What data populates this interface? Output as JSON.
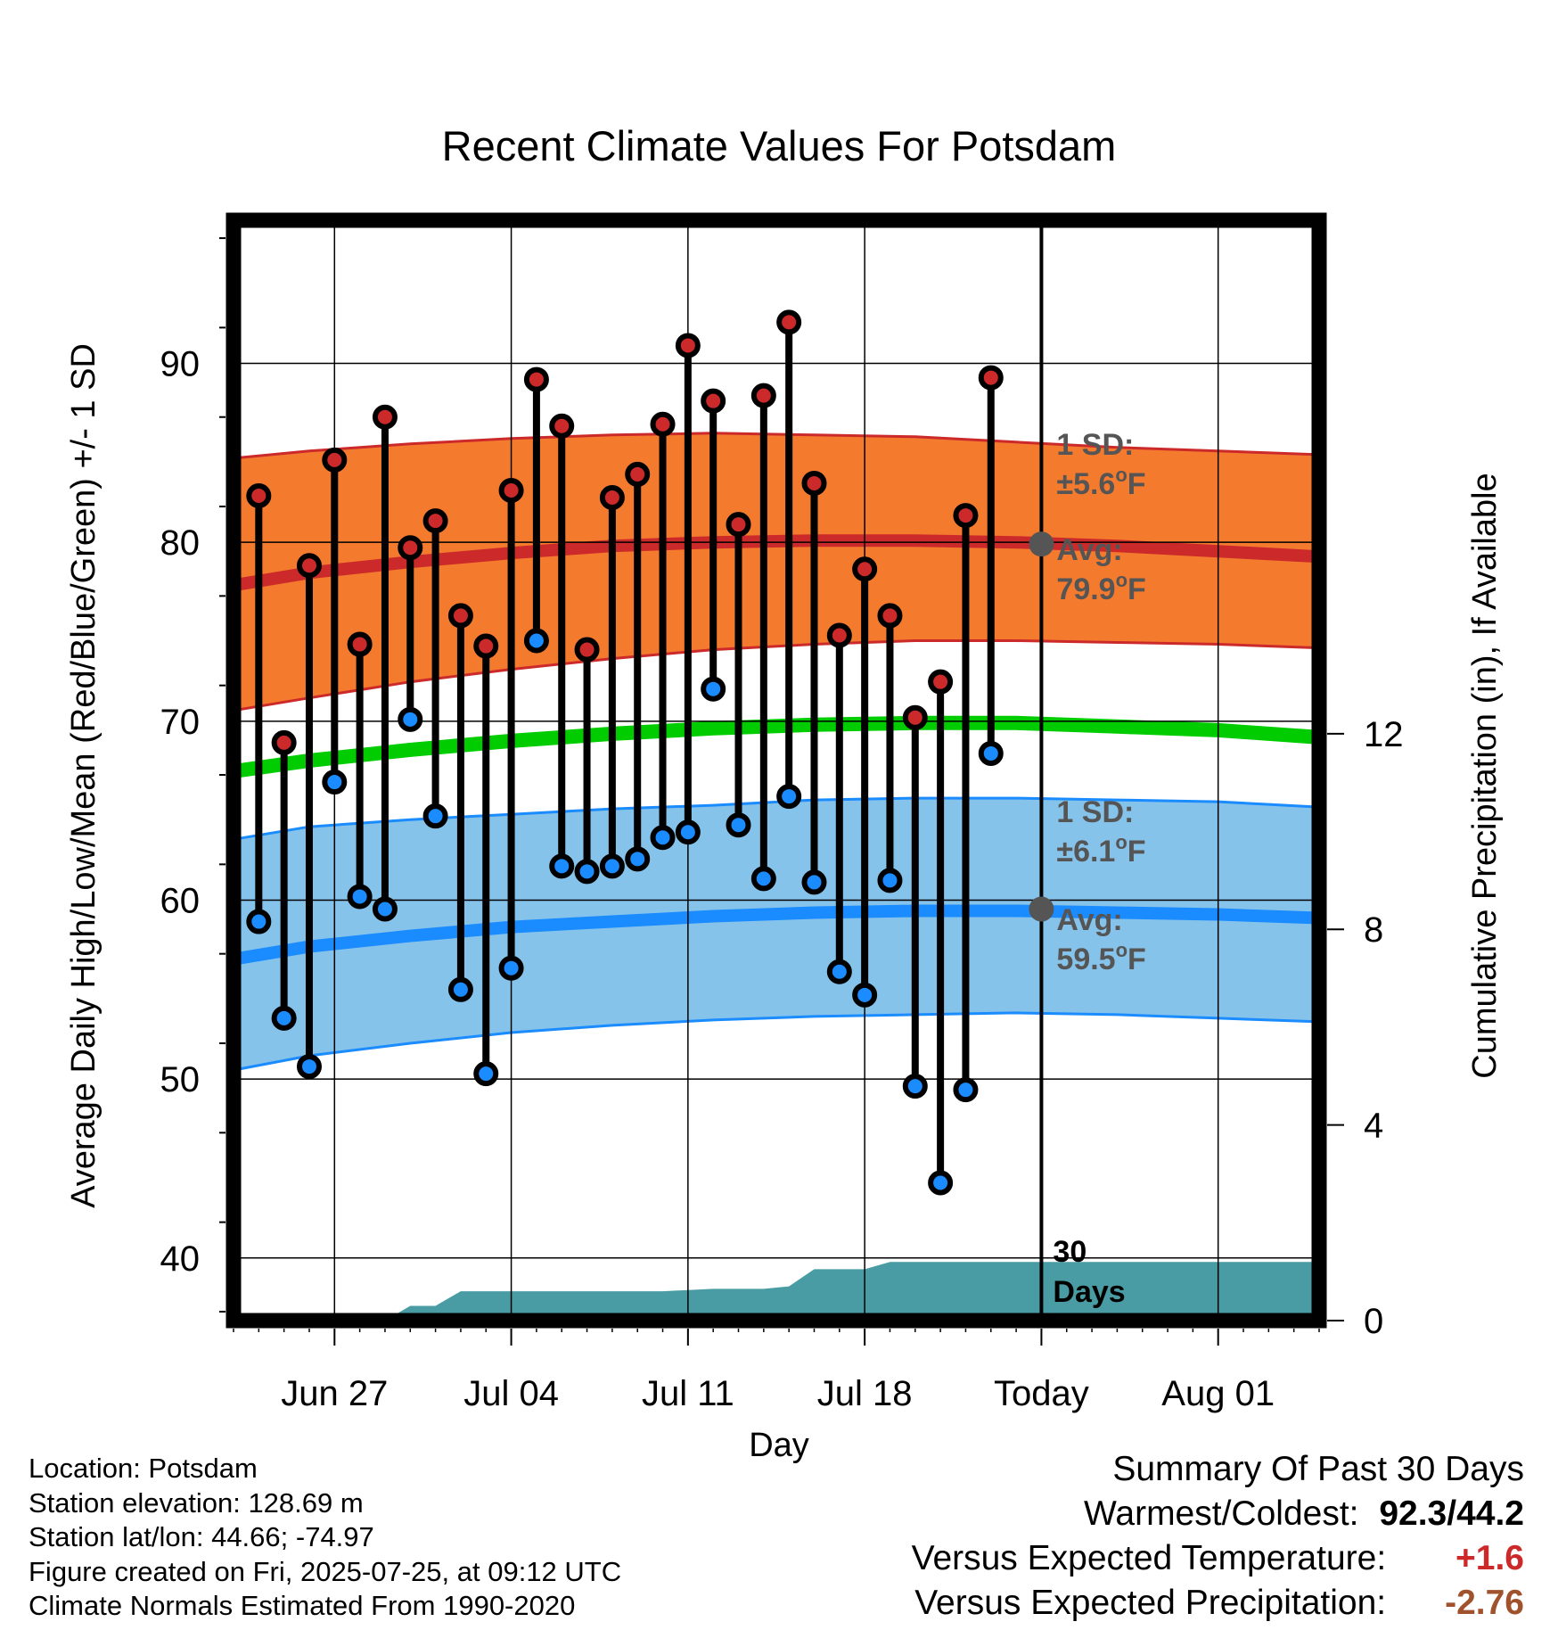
{
  "chart_data": {
    "type": "line",
    "title": "Recent Climate Values For Potsdam",
    "xlabel": "Day",
    "ylabel": "Average Daily High/Low/Mean (Red/Blue/Green) +/- 1 SD",
    "y2label": "Cumulative Precipitation (in), If Available",
    "x_range": [
      "2025-06-23",
      "2025-08-05"
    ],
    "ylim": [
      36.5,
      98
    ],
    "y2lim": [
      0,
      22.5
    ],
    "grid": true,
    "x_ticks": [
      {
        "date": "2025-06-27",
        "label": "Jun 27"
      },
      {
        "date": "2025-07-04",
        "label": "Jul 04"
      },
      {
        "date": "2025-07-11",
        "label": "Jul 11"
      },
      {
        "date": "2025-07-18",
        "label": "Jul 18"
      },
      {
        "date": "2025-07-25",
        "label": "Today"
      },
      {
        "date": "2025-08-01",
        "label": "Aug 01"
      }
    ],
    "y_ticks": [
      40,
      50,
      60,
      70,
      80,
      90
    ],
    "y_tick_labels": [
      "40",
      "50",
      "60",
      "70",
      "80",
      "90"
    ],
    "y2_ticks": [
      0,
      4,
      8,
      12
    ],
    "y2_tick_labels": [
      "0",
      "4",
      "8",
      "12"
    ],
    "today": "2025-07-25",
    "daily": [
      {
        "date": "2025-06-24",
        "high": 82.6,
        "low": 58.8
      },
      {
        "date": "2025-06-25",
        "high": 68.8,
        "low": 53.4
      },
      {
        "date": "2025-06-26",
        "high": 78.7,
        "low": 50.7
      },
      {
        "date": "2025-06-27",
        "high": 84.6,
        "low": 66.6
      },
      {
        "date": "2025-06-28",
        "high": 74.3,
        "low": 60.2
      },
      {
        "date": "2025-06-29",
        "high": 87.0,
        "low": 59.5
      },
      {
        "date": "2025-06-30",
        "high": 79.7,
        "low": 70.1
      },
      {
        "date": "2025-07-01",
        "high": 81.2,
        "low": 64.7
      },
      {
        "date": "2025-07-02",
        "high": 75.9,
        "low": 55.0
      },
      {
        "date": "2025-07-03",
        "high": 74.2,
        "low": 50.3
      },
      {
        "date": "2025-07-04",
        "high": 82.9,
        "low": 56.2
      },
      {
        "date": "2025-07-05",
        "high": 89.1,
        "low": 74.5
      },
      {
        "date": "2025-07-06",
        "high": 86.5,
        "low": 61.9
      },
      {
        "date": "2025-07-07",
        "high": 74.0,
        "low": 61.6
      },
      {
        "date": "2025-07-08",
        "high": 82.5,
        "low": 61.9
      },
      {
        "date": "2025-07-09",
        "high": 83.8,
        "low": 62.3
      },
      {
        "date": "2025-07-10",
        "high": 86.6,
        "low": 63.5
      },
      {
        "date": "2025-07-11",
        "high": 91.0,
        "low": 63.8
      },
      {
        "date": "2025-07-12",
        "high": 87.9,
        "low": 71.8
      },
      {
        "date": "2025-07-13",
        "high": 81.0,
        "low": 64.2
      },
      {
        "date": "2025-07-14",
        "high": 88.2,
        "low": 61.2
      },
      {
        "date": "2025-07-15",
        "high": 92.3,
        "low": 65.8
      },
      {
        "date": "2025-07-16",
        "high": 83.3,
        "low": 61.0
      },
      {
        "date": "2025-07-17",
        "high": 74.8,
        "low": 56.0
      },
      {
        "date": "2025-07-18",
        "high": 78.5,
        "low": 54.7
      },
      {
        "date": "2025-07-19",
        "high": 75.9,
        "low": 61.1
      },
      {
        "date": "2025-07-20",
        "high": 70.2,
        "low": 49.6
      },
      {
        "date": "2025-07-21",
        "high": 72.2,
        "low": 44.2
      },
      {
        "date": "2025-07-22",
        "high": 81.5,
        "low": 49.4
      },
      {
        "date": "2025-07-23",
        "high": 89.2,
        "low": 68.2
      }
    ],
    "series": [
      {
        "name": "Average High",
        "color": "#cc2a2a",
        "x": [
          "2025-06-23",
          "2025-06-26",
          "2025-06-30",
          "2025-07-04",
          "2025-07-08",
          "2025-07-12",
          "2025-07-16",
          "2025-07-20",
          "2025-07-24",
          "2025-07-28",
          "2025-08-01",
          "2025-08-05"
        ],
        "y": [
          77.6,
          78.3,
          78.9,
          79.4,
          79.8,
          80.0,
          80.1,
          80.1,
          80.0,
          79.8,
          79.5,
          79.2
        ]
      },
      {
        "name": "Average Low",
        "color": "#1a8cff",
        "x": [
          "2025-06-23",
          "2025-06-26",
          "2025-06-30",
          "2025-07-04",
          "2025-07-08",
          "2025-07-12",
          "2025-07-16",
          "2025-07-20",
          "2025-07-24",
          "2025-07-28",
          "2025-08-01",
          "2025-08-05"
        ],
        "y": [
          56.7,
          57.4,
          58.0,
          58.5,
          58.8,
          59.1,
          59.3,
          59.4,
          59.4,
          59.3,
          59.2,
          59.0
        ]
      },
      {
        "name": "Average Mean",
        "color": "#00cc00",
        "x": [
          "2025-06-23",
          "2025-06-26",
          "2025-06-30",
          "2025-07-04",
          "2025-07-08",
          "2025-07-12",
          "2025-07-16",
          "2025-07-20",
          "2025-07-24",
          "2025-07-28",
          "2025-08-01",
          "2025-08-05"
        ],
        "y": [
          67.2,
          67.8,
          68.4,
          68.9,
          69.3,
          69.6,
          69.8,
          69.9,
          69.9,
          69.7,
          69.5,
          69.1
        ]
      },
      {
        "name": "High +1 SD",
        "color": "#cc2a2a",
        "x": [
          "2025-06-23",
          "2025-06-26",
          "2025-06-30",
          "2025-07-04",
          "2025-07-08",
          "2025-07-12",
          "2025-07-16",
          "2025-07-20",
          "2025-07-24",
          "2025-07-28",
          "2025-08-01",
          "2025-08-05"
        ],
        "y": [
          84.7,
          85.1,
          85.5,
          85.8,
          86.0,
          86.1,
          86.0,
          85.9,
          85.6,
          85.3,
          85.1,
          84.9
        ]
      },
      {
        "name": "High -1 SD",
        "color": "#cc2a2a",
        "x": [
          "2025-06-23",
          "2025-06-26",
          "2025-06-30",
          "2025-07-04",
          "2025-07-08",
          "2025-07-12",
          "2025-07-16",
          "2025-07-20",
          "2025-07-24",
          "2025-07-28",
          "2025-08-01",
          "2025-08-05"
        ],
        "y": [
          70.6,
          71.3,
          72.2,
          72.9,
          73.5,
          74.0,
          74.3,
          74.5,
          74.5,
          74.4,
          74.3,
          74.1
        ]
      },
      {
        "name": "Low +1 SD",
        "color": "#1a8cff",
        "x": [
          "2025-06-23",
          "2025-06-26",
          "2025-06-30",
          "2025-07-04",
          "2025-07-08",
          "2025-07-12",
          "2025-07-16",
          "2025-07-20",
          "2025-07-24",
          "2025-07-28",
          "2025-08-01",
          "2025-08-05"
        ],
        "y": [
          63.4,
          64.1,
          64.5,
          64.8,
          65.1,
          65.3,
          65.6,
          65.7,
          65.7,
          65.6,
          65.5,
          65.2
        ]
      },
      {
        "name": "Low -1 SD",
        "color": "#1a8cff",
        "x": [
          "2025-06-23",
          "2025-06-26",
          "2025-06-30",
          "2025-07-04",
          "2025-07-08",
          "2025-07-12",
          "2025-07-16",
          "2025-07-20",
          "2025-07-24",
          "2025-07-28",
          "2025-08-01",
          "2025-08-05"
        ],
        "y": [
          50.5,
          51.3,
          52.0,
          52.6,
          53.0,
          53.3,
          53.5,
          53.6,
          53.7,
          53.6,
          53.4,
          53.2
        ]
      }
    ],
    "precipitation": {
      "x": [
        "2025-06-23",
        "2025-06-26",
        "2025-06-27",
        "2025-06-28",
        "2025-06-29",
        "2025-06-30",
        "2025-07-01",
        "2025-07-02",
        "2025-07-04",
        "2025-07-07",
        "2025-07-10",
        "2025-07-12",
        "2025-07-14",
        "2025-07-15",
        "2025-07-16",
        "2025-07-17",
        "2025-07-18",
        "2025-07-19",
        "2025-07-24",
        "2025-08-05"
      ],
      "y": [
        0.0,
        0.0,
        0.0,
        0.0,
        0.0,
        0.3,
        0.3,
        0.6,
        0.6,
        0.6,
        0.6,
        0.65,
        0.65,
        0.7,
        1.05,
        1.05,
        1.05,
        1.2,
        1.2,
        1.2
      ]
    },
    "annotations": {
      "high_sd": {
        "label": "1 SD:",
        "value": "±5.6°F"
      },
      "high_avg": {
        "label": "Avg:",
        "value": "79.9°F",
        "y": 79.9
      },
      "low_sd": {
        "label": "1 SD:",
        "value": "±6.1°F"
      },
      "low_avg": {
        "label": "Avg:",
        "value": "59.5°F",
        "y": 59.5
      },
      "days_top": "30",
      "days_bottom": "Days"
    }
  },
  "info": {
    "location": "Location: Potsdam",
    "elevation": "Station elevation: 128.69 m",
    "latlon": "Station lat/lon: 44.66; -74.97",
    "created": "Figure created on Fri, 2025-07-25, at 09:12 UTC",
    "normals": "Climate Normals Estimated From 1990-2020"
  },
  "summary": {
    "title": "Summary Of Past 30 Days",
    "warm_cold_label": "Warmest/Coldest:",
    "warm_cold_value": "92.3/44.2",
    "temp_label": "Versus Expected Temperature:",
    "temp_value": "+1.6",
    "temp_color": "#cc2a2a",
    "precip_label": "Versus Expected Precipitation:",
    "precip_value": "-2.76",
    "precip_color": "#a0522d"
  },
  "colors": {
    "high_band": "#f47a2e",
    "low_band": "#86c3eb",
    "high_line": "#cc2a2a",
    "low_line": "#1a8cff",
    "mean_line": "#00cc00",
    "precip_fill": "#4a9ca4",
    "marker_gray": "#555555",
    "annot_gray": "#555555"
  }
}
